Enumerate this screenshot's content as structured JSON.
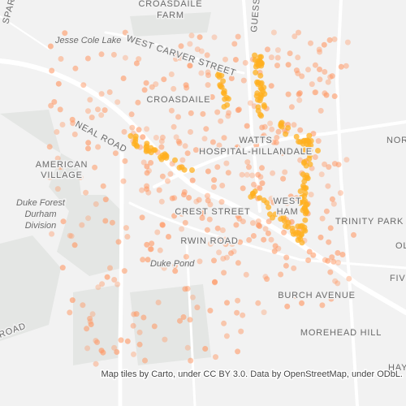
{
  "map": {
    "labels": [
      {
        "lines": [
          "CROASDAILE",
          "FARM"
        ]
      },
      {
        "lines": [
          "Jesse Cole Lake"
        ]
      },
      {
        "lines": [
          "WEST CARVER STREET"
        ]
      },
      {
        "lines": [
          "GUESS ROAD"
        ]
      },
      {
        "lines": [
          "CROASDAILE"
        ]
      },
      {
        "lines": [
          "NEAL ROAD"
        ]
      },
      {
        "lines": [
          "AMERICAN",
          "VILLAGE"
        ]
      },
      {
        "lines": [
          "Duke Forest",
          "Durham",
          "Division"
        ]
      },
      {
        "lines": [
          "WATTS",
          "HOSPITAL-HILLANDALE"
        ]
      },
      {
        "lines": [
          "WEST",
          "HAM"
        ]
      },
      {
        "lines": [
          "CREST STREET"
        ]
      },
      {
        "lines": [
          "RWIN ROAD"
        ]
      },
      {
        "lines": [
          "Duke Pond"
        ]
      },
      {
        "lines": [
          "TRINITY PARK"
        ]
      },
      {
        "lines": [
          "BURCH AVENUE"
        ]
      },
      {
        "lines": [
          "MOREHEAD HILL"
        ]
      },
      {
        "lines": [
          "NOR"
        ]
      },
      {
        "lines": [
          "OL"
        ]
      },
      {
        "lines": [
          "FIV"
        ]
      },
      {
        "lines": [
          "HAY"
        ]
      },
      {
        "lines": [
          "ROAD"
        ]
      },
      {
        "lines": [
          "SPARG"
        ]
      }
    ],
    "attribution": "Map tiles by Carto, under CC BY 3.0. Data by OpenStreetMap, under ODbL."
  }
}
